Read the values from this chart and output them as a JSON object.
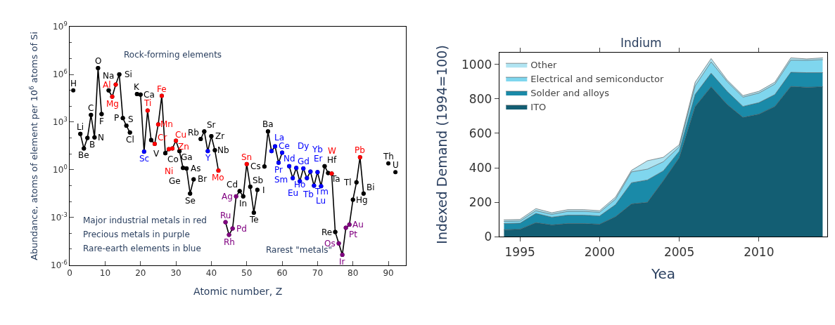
{
  "chart_data": [
    {
      "type": "line",
      "xlabel": "Atomic number, Z",
      "ylabel": "Abundance, atoms of element per 10$^{6}$ atoms of Si",
      "log": "y",
      "xlim": [
        0,
        95
      ],
      "xticks": [
        0,
        10,
        20,
        30,
        40,
        50,
        60,
        70,
        80,
        90
      ],
      "ylim": [
        1e-06,
        1000000000.0
      ],
      "yticks": [
        {
          "value": 1e-06,
          "label": "10$^{-6}$"
        },
        {
          "value": 0.001,
          "label": "10$^{-3}$"
        },
        {
          "value": 1,
          "label": "10$^{0}$"
        },
        {
          "value": 1000,
          "label": "10$^{3}$"
        },
        {
          "value": 1000000,
          "label": "10$^{6}$"
        },
        {
          "value": 1000000000.0,
          "label": "10$^{9}$"
        }
      ],
      "legend": false,
      "marker": "circle",
      "line_style": "solid",
      "annotations": [
        "Rock-forming elements",
        "Rarest \"metals\"",
        "Major industrial metals in red",
        "Precious metals in purple",
        "Rare-earth elements in blue"
      ],
      "series": [
        {
          "color": "#000000",
          "x": [
            3,
            4,
            5,
            6,
            7,
            8,
            9,
            10,
            11,
            12,
            13,
            14,
            15,
            16,
            17,
            18,
            19,
            20,
            21,
            22,
            23,
            24,
            25,
            26,
            27,
            28,
            29,
            30,
            31,
            32,
            33,
            34,
            35,
            36,
            37,
            38,
            39,
            40,
            41,
            42,
            43,
            44,
            45,
            46,
            47,
            48,
            49,
            50,
            51,
            52,
            53,
            54,
            55,
            56,
            57,
            58,
            59,
            60,
            61,
            62,
            63,
            64,
            65,
            66,
            67,
            68,
            69,
            70,
            71,
            72,
            73,
            74,
            75,
            76,
            77,
            78,
            79,
            80,
            81,
            82,
            83
          ],
          "values": [
            180,
            22,
            100,
            2800,
            110,
            2500000.0,
            3200,
            null,
            100000.0,
            40000.0,
            230000.0,
            1000000.0,
            1800,
            600,
            220,
            null,
            58000.0,
            54000.0,
            14,
            5400,
            74,
            43,
            720,
            45000.0,
            11,
            20,
            22,
            68,
            15,
            1.3,
            1.2,
            0.032,
            0.25,
            null,
            87,
            260,
            15,
            130,
            17,
            0.9,
            null,
            0.0005,
            8e-05,
            0.0002,
            0.021,
            0.045,
            0.021,
            2.3,
            0.085,
            0.002,
            0.054,
            null,
            1.6,
            260,
            15,
            30,
            2.8,
            12,
            null,
            1.7,
            0.3,
            1.3,
            0.19,
            1.2,
            0.3,
            0.76,
            0.1,
            0.7,
            0.093,
            1.7,
            0.63,
            0.58,
            0.00012,
            2.3e-05,
            4.4e-06,
            0.00022,
            0.00035,
            0.013,
            0.16,
            6.2,
            0.032
          ]
        },
        {
          "type": "scatter",
          "color": "#000000",
          "x": [
            1,
            3,
            4,
            5,
            6,
            7,
            8,
            9,
            11,
            14,
            15,
            16,
            17,
            19,
            20,
            23,
            27,
            31,
            32,
            33,
            34,
            35,
            37,
            38,
            40,
            41,
            48,
            49,
            51,
            52,
            53,
            55,
            56,
            72,
            73,
            75,
            80,
            81,
            83,
            90,
            92
          ],
          "values": [
            100000.0,
            180,
            22,
            100,
            2800,
            110,
            2500000.0,
            3200,
            100000.0,
            1000000.0,
            1800,
            600,
            220,
            58000.0,
            54000.0,
            74,
            11,
            15,
            1.3,
            1.2,
            0.032,
            0.25,
            87,
            260,
            130,
            17,
            0.045,
            0.021,
            0.085,
            0.002,
            0.054,
            1.6,
            260,
            1.7,
            0.63,
            0.00012,
            0.013,
            0.16,
            0.032,
            2.5,
            0.7
          ],
          "value_labels": [
            "H",
            "Li",
            "Be",
            "B",
            "C",
            "N",
            "O",
            "F",
            "Na",
            "Si",
            "P",
            "S",
            "Cl",
            "K",
            "Ca",
            "V",
            "Co",
            "Ga",
            "Ge",
            "As",
            "Se",
            "Br",
            "Rb",
            "Sr",
            "Zr",
            "Nb",
            "Cd",
            "In",
            "Sb",
            "Te",
            "I",
            "Cs",
            "Ba",
            "Hf",
            "Ta",
            "Re",
            "Hg",
            "Tl",
            "Bi",
            "Th",
            "U"
          ]
        },
        {
          "type": "scatter",
          "color": "#ff0000",
          "x": [
            12,
            13,
            22,
            24,
            25,
            26,
            28,
            29,
            30,
            42,
            50,
            74,
            82
          ],
          "values": [
            40000.0,
            230000.0,
            5400,
            43,
            720,
            45000.0,
            20,
            22,
            68,
            0.9,
            2.3,
            0.58,
            6.2
          ],
          "value_labels": [
            "Mg",
            "Al",
            "Ti",
            "Cr",
            "Mn",
            "Fe",
            "Ni",
            "Cu",
            "Zn",
            "Mo",
            "Sn",
            "W",
            "Pb"
          ]
        },
        {
          "type": "scatter",
          "color": "#800080",
          "x": [
            44,
            45,
            46,
            47,
            76,
            77,
            78,
            79
          ],
          "values": [
            0.0005,
            8e-05,
            0.0002,
            0.021,
            2.3e-05,
            4.4e-06,
            0.00022,
            0.00035
          ],
          "value_labels": [
            "Ru",
            "Rh",
            "Pd",
            "Ag",
            "Os",
            "Ir",
            "Pt",
            "Au"
          ]
        },
        {
          "type": "scatter",
          "color": "#0000ff",
          "x": [
            21,
            39,
            57,
            58,
            59,
            60,
            62,
            63,
            64,
            65,
            66,
            67,
            68,
            69,
            70,
            71
          ],
          "values": [
            14,
            15,
            15,
            30,
            2.8,
            12,
            1.7,
            0.3,
            1.3,
            0.19,
            1.2,
            0.3,
            0.76,
            0.1,
            0.7,
            0.093
          ],
          "value_labels": [
            "Sc",
            "Y",
            "La",
            "Ce",
            "Pr",
            "Nd",
            "Sm",
            "Eu",
            "Gd",
            "Tb",
            "Dy",
            "Ho",
            "Er",
            "Tm",
            "Yb",
            "Lu"
          ]
        }
      ]
    },
    {
      "type": "area",
      "stacked": true,
      "title": "Indium",
      "xlabel": "Yea",
      "ylabel": "Indexed Demand (1994=100)",
      "x": [
        1994,
        1995,
        1996,
        1997,
        1998,
        1999,
        2000,
        2001,
        2002,
        2003,
        2004,
        2005,
        2006,
        2007,
        2008,
        2009,
        2010,
        2011,
        2012,
        2013,
        2014
      ],
      "xlim": [
        1993.7,
        2014.3
      ],
      "xticks": [
        1995,
        2000,
        2005,
        2010
      ],
      "ylim": [
        0,
        1070
      ],
      "yticks": [
        0,
        200,
        400,
        600,
        800,
        1000
      ],
      "legend": "top left",
      "series": [
        {
          "name": "ITO",
          "color": "#135e73",
          "values": [
            40,
            43,
            81,
            68,
            76,
            76,
            72,
            116,
            190,
            199,
            325,
            458,
            756,
            870,
            768,
            692,
            711,
            756,
            872,
            867,
            870
          ]
        },
        {
          "name": "Solder and alloys",
          "color": "#1a8aa8",
          "values": [
            36,
            35,
            54,
            45,
            49,
            49,
            48,
            70,
            123,
            130,
            57,
            38,
            70,
            79,
            76,
            64,
            67,
            69,
            82,
            85,
            82
          ]
        },
        {
          "name": "Electrical and semiconductor",
          "color": "#7fd6ee",
          "values": [
            13,
            13,
            16,
            17,
            22,
            22,
            22,
            32,
            63,
            63,
            53,
            26,
            50,
            66,
            57,
            54,
            56,
            61,
            71,
            72,
            76
          ]
        },
        {
          "name": "Other",
          "color": "#b0e4f2",
          "values": [
            9,
            9,
            12,
            9,
            10,
            10,
            9,
            12,
            9,
            49,
            26,
            12,
            21,
            19,
            9,
            9,
            10,
            11,
            13,
            8,
            10
          ]
        }
      ]
    }
  ]
}
